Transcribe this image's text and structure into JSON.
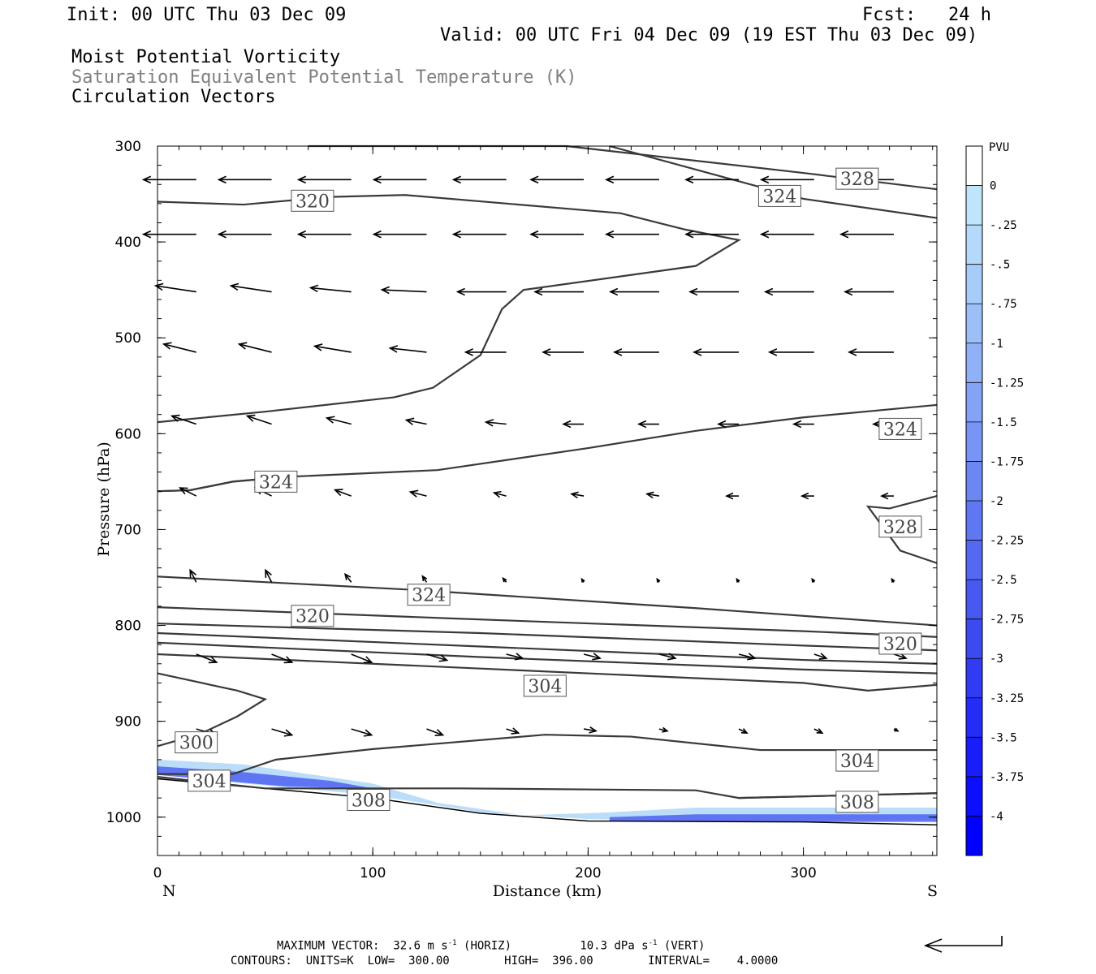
{
  "header": {
    "init": "Init: 00 UTC Thu 03 Dec 09",
    "fcst": "Fcst:   24 h",
    "valid": "Valid: 00 UTC Fri 04 Dec 09 (19 EST Thu 03 Dec 09)",
    "field1": "Moist Potential Vorticity",
    "field2": "Saturation Equivalent Potential Temperature (K)",
    "field3": "Circulation Vectors"
  },
  "footer": {
    "max_vector_label": "MAXIMUM VECTOR:",
    "max_horiz": "32.6 m s",
    "max_horiz_unit": "(HORIZ)",
    "max_vert": "10.3 dPa s",
    "max_vert_unit": "(VERT)",
    "exp": "-1",
    "contours": "CONTOURS:  UNITS=K  LOW=  300.00        HIGH=  396.00        INTERVAL=    4.0000"
  },
  "colors": {
    "contour": "#3a3a3a",
    "pv_light": "#c0e4fa",
    "pv_dark": "#0000ff"
  },
  "chart_data": {
    "type": "cross-section",
    "xlabel": "Distance (km)",
    "ylabel": "Pressure (hPa)",
    "xlim": [
      0,
      362
    ],
    "ylim": [
      1040,
      300
    ],
    "x_ticks": [
      0,
      100,
      200,
      300
    ],
    "y_ticks": [
      300,
      400,
      500,
      600,
      700,
      800,
      900,
      1000
    ],
    "left_end_label": "N",
    "right_end_label": "S",
    "colorbar": {
      "unit": "PVU",
      "levels": [
        "0",
        "-.25",
        "-.5",
        "-.75",
        "-1",
        "-1.25",
        "-1.5",
        "-1.75",
        "-2",
        "-2.25",
        "-2.5",
        "-2.75",
        "-3",
        "-3.25",
        "-3.5",
        "-3.75",
        "-4"
      ],
      "colors": [
        "#ffffff",
        "#c0e4fa",
        "#b4d9fa",
        "#a8ccf9",
        "#9cbff8",
        "#90b1f7",
        "#84a3f6",
        "#7895f5",
        "#6c86f4",
        "#6077f3",
        "#5468f2",
        "#4859f1",
        "#3c4af0",
        "#303bf3",
        "#242cf6",
        "#181df9",
        "#0c0efc",
        "#0000ff"
      ]
    },
    "contours": [
      {
        "label": "328",
        "label_at": [
          325,
          334
        ],
        "points": [
          [
            70,
            300
          ],
          [
            190,
            300
          ],
          [
            300,
            328
          ],
          [
            362,
            345
          ]
        ]
      },
      {
        "label": "324",
        "label_at": [
          289,
          352
        ],
        "points": [
          [
            210,
            300
          ],
          [
            300,
            355
          ],
          [
            362,
            375
          ]
        ]
      },
      {
        "label": "320",
        "label_at": [
          72,
          357
        ],
        "points": [
          [
            0,
            358
          ],
          [
            40,
            361
          ],
          [
            80,
            353
          ],
          [
            115,
            351
          ],
          [
            215,
            370
          ],
          [
            245,
            387
          ],
          [
            270,
            398
          ],
          [
            250,
            425
          ],
          [
            170,
            450
          ],
          [
            160,
            470
          ],
          [
            150,
            518
          ],
          [
            128,
            552
          ],
          [
            110,
            562
          ],
          [
            50,
            577
          ],
          [
            0,
            588
          ]
        ]
      },
      {
        "label": "324",
        "label_at": [
          345,
          595
        ],
        "points": [
          [
            0,
            660
          ],
          [
            15,
            659
          ],
          [
            35,
            650
          ],
          [
            60,
            645
          ],
          [
            130,
            638
          ],
          [
            200,
            615
          ],
          [
            250,
            597
          ],
          [
            300,
            583
          ],
          [
            362,
            570
          ]
        ]
      },
      {
        "label": "324",
        "label_at": [
          55,
          650
        ],
        "points": [
          [
            0,
            660
          ],
          [
            15,
            659
          ],
          [
            35,
            650
          ],
          [
            60,
            645
          ]
        ]
      },
      {
        "label": "328",
        "label_at": [
          345,
          697
        ],
        "points": [
          [
            362,
            665
          ],
          [
            340,
            678
          ],
          [
            330,
            676
          ],
          [
            345,
            722
          ],
          [
            362,
            735
          ]
        ]
      },
      {
        "label": "324",
        "label_at": [
          126,
          768
        ],
        "points": [
          [
            0,
            749
          ],
          [
            120,
            763
          ],
          [
            250,
            782
          ],
          [
            362,
            800
          ]
        ]
      },
      {
        "label": "320",
        "label_at": [
          72,
          790
        ],
        "points": [
          [
            0,
            781
          ],
          [
            140,
            793
          ],
          [
            300,
            806
          ],
          [
            362,
            812
          ]
        ]
      },
      {
        "label": "320",
        "label_at": [
          345,
          819
        ],
        "points": [
          [
            0,
            798
          ],
          [
            150,
            808
          ],
          [
            300,
            821
          ],
          [
            362,
            826
          ]
        ]
      },
      {
        "label": "",
        "label_at": null,
        "points": [
          [
            0,
            808
          ],
          [
            150,
            822
          ],
          [
            300,
            836
          ],
          [
            362,
            840
          ]
        ]
      },
      {
        "label": "",
        "label_at": null,
        "points": [
          [
            0,
            818
          ],
          [
            150,
            833
          ],
          [
            300,
            846
          ],
          [
            362,
            850
          ]
        ]
      },
      {
        "label": "304",
        "label_at": [
          180,
          863
        ],
        "points": [
          [
            0,
            830
          ],
          [
            150,
            845
          ],
          [
            300,
            860
          ],
          [
            330,
            868
          ],
          [
            362,
            862
          ]
        ]
      },
      {
        "label": "300",
        "label_at": [
          18,
          922
        ],
        "points": [
          [
            0,
            850
          ],
          [
            37,
            868
          ],
          [
            50,
            877
          ],
          [
            37,
            895
          ],
          [
            20,
            913
          ],
          [
            0,
            926
          ]
        ]
      },
      {
        "label": "304",
        "label_at": [
          325,
          941
        ],
        "points": [
          [
            35,
            955
          ],
          [
            55,
            940
          ],
          [
            100,
            929
          ],
          [
            180,
            914
          ],
          [
            220,
            916
          ],
          [
            280,
            930
          ],
          [
            362,
            930
          ]
        ]
      },
      {
        "label": "304",
        "label_at": [
          24,
          962
        ],
        "points": [
          [
            0,
            955
          ],
          [
            35,
            955
          ]
        ]
      },
      {
        "label": "308",
        "label_at": [
          98,
          982
        ],
        "points": [
          [
            0,
            958
          ],
          [
            50,
            970
          ],
          [
            140,
            970
          ],
          [
            250,
            972
          ],
          [
            270,
            980
          ],
          [
            362,
            975
          ]
        ]
      },
      {
        "label": "308",
        "label_at": [
          325,
          984
        ],
        "points": [
          [
            270,
            980
          ],
          [
            362,
            975
          ]
        ]
      }
    ],
    "ground": [
      [
        0,
        960
      ],
      [
        40,
        968
      ],
      [
        100,
        980
      ],
      [
        150,
        996
      ],
      [
        200,
        1004
      ],
      [
        300,
        1005
      ],
      [
        362,
        1008
      ]
    ],
    "pv_bands": [
      {
        "pv": -0.5,
        "points": [
          [
            0,
            940
          ],
          [
            40,
            945
          ],
          [
            100,
            965
          ],
          [
            130,
            985
          ],
          [
            170,
            998
          ],
          [
            210,
            995
          ],
          [
            250,
            990
          ],
          [
            362,
            990
          ],
          [
            362,
            1002
          ],
          [
            250,
            1003
          ],
          [
            200,
            1002
          ],
          [
            150,
            995
          ],
          [
            100,
            977
          ],
          [
            40,
            965
          ],
          [
            0,
            955
          ]
        ]
      },
      {
        "pv": -2.5,
        "points": [
          [
            0,
            947
          ],
          [
            40,
            953
          ],
          [
            80,
            962
          ],
          [
            100,
            970
          ],
          [
            60,
            968
          ],
          [
            20,
            960
          ],
          [
            0,
            956
          ]
        ]
      },
      {
        "pv": -2.5,
        "points": [
          [
            210,
            1000
          ],
          [
            250,
            997
          ],
          [
            362,
            997
          ],
          [
            362,
            1005
          ],
          [
            250,
            1005
          ],
          [
            210,
            1004
          ]
        ]
      }
    ],
    "vectors": {
      "x_positions": [
        18,
        53,
        90,
        125,
        162,
        198,
        233,
        270,
        305,
        342
      ],
      "rows": [
        {
          "p": 335,
          "u": [
            -13,
            -13,
            -13,
            -13,
            -13,
            -13,
            -13,
            -13,
            -13,
            -13
          ],
          "w": [
            0,
            0,
            0,
            0,
            0,
            0,
            0,
            0,
            0,
            0
          ]
        },
        {
          "p": 392,
          "u": [
            -13,
            -13,
            -13,
            -13,
            -13,
            -13,
            -13,
            -13,
            -13,
            -13
          ],
          "w": [
            0,
            0,
            0,
            0,
            0,
            0,
            0,
            0,
            0,
            0
          ]
        },
        {
          "p": 452,
          "u": [
            -10,
            -10,
            -10,
            -11,
            -12,
            -12,
            -12,
            -12,
            -12,
            -12
          ],
          "w": [
            -1.5,
            -1.5,
            -1,
            -0.5,
            0,
            0,
            0,
            0,
            0,
            0
          ]
        },
        {
          "p": 515,
          "u": [
            -8,
            -8,
            -9,
            -9,
            -10,
            -10,
            -11,
            -11,
            -11,
            -11
          ],
          "w": [
            -2,
            -2,
            -1.5,
            -1,
            0,
            0,
            0,
            0,
            0,
            0
          ]
        },
        {
          "p": 590,
          "u": [
            -6,
            -6,
            -6,
            -5,
            -5,
            -5,
            -5,
            -5,
            -5,
            -5
          ],
          "w": [
            -2,
            -2,
            -1.5,
            -1,
            -0.5,
            0,
            0,
            0,
            0,
            0
          ]
        },
        {
          "p": 665,
          "u": [
            -4,
            -4,
            -4,
            -4,
            -3,
            -3,
            -3,
            -3,
            -3,
            -3
          ],
          "w": [
            -2,
            -2,
            -1.5,
            -1,
            -0.8,
            -0.5,
            -0.5,
            0,
            0,
            0
          ]
        },
        {
          "p": 755,
          "u": [
            -1.5,
            -1.5,
            -1.5,
            -1,
            -0.8,
            -0.5,
            -0.5,
            -0.5,
            -0.5,
            -0.5
          ],
          "w": [
            -3,
            -3,
            -2,
            -1.5,
            -1,
            -0.8,
            -0.8,
            -0.8,
            -0.8,
            -0.8
          ]
        },
        {
          "p": 830,
          "u": [
            5,
            5,
            5,
            5,
            4,
            4,
            4,
            4,
            3,
            3
          ],
          "w": [
            2,
            2,
            2,
            1.5,
            1,
            1,
            1,
            1,
            1,
            1
          ]
        },
        {
          "p": 908,
          "u": [
            5,
            5,
            5,
            4,
            3,
            3,
            2,
            2,
            2,
            1
          ],
          "w": [
            1.5,
            1.5,
            1.5,
            1.5,
            1,
            0.5,
            0.5,
            1,
            1,
            0.5
          ]
        }
      ],
      "reference_arrow_label": ""
    }
  }
}
